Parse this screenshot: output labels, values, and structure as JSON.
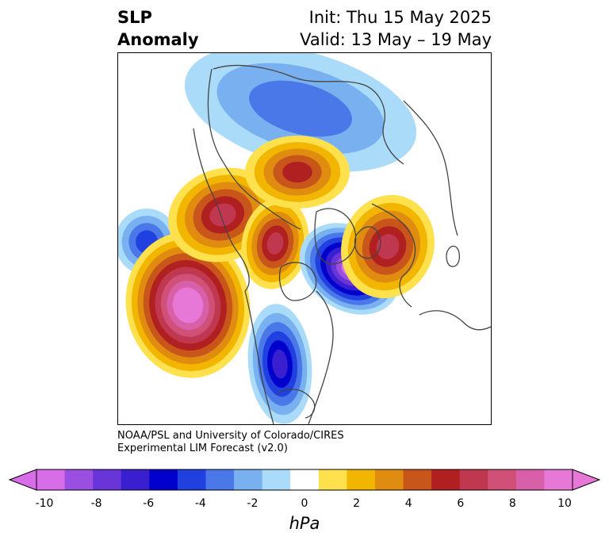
{
  "title": {
    "left_line1": "SLP",
    "left_line2": "Anomaly",
    "right_line1": "Init: Thu 15 May 2025",
    "right_line2": "Valid: 13 May – 19 May"
  },
  "credit": {
    "line1": "NOAA/PSL and University of Colorado/CIRES",
    "line2": "Experimental LIM Forecast (v2.0)"
  },
  "colorbar": {
    "unit": "hPa",
    "ticks": [
      "-10",
      "-8",
      "-6",
      "-4",
      "-2",
      "0",
      "2",
      "4",
      "6",
      "8",
      "10"
    ],
    "levels": [
      -10,
      -9,
      -8,
      -7,
      -6,
      -5,
      -4,
      -3,
      -2,
      -1,
      1,
      2,
      3,
      4,
      5,
      6,
      7,
      8,
      9,
      10
    ],
    "colors": [
      "#d86de8",
      "#9b4fe0",
      "#6a35d8",
      "#3a1fd0",
      "#0000cc",
      "#2040e0",
      "#4a78e8",
      "#78b0f0",
      "#aadcfa",
      "#ffffff",
      "#ffe14d",
      "#f2b600",
      "#e08c10",
      "#c8561a",
      "#b02020",
      "#c03850",
      "#d05078",
      "#d860a8",
      "#e878d8"
    ],
    "under_color": "#d86de8",
    "over_color": "#e878d8"
  },
  "map_anomalies": [
    {
      "name": "north-pacific-low",
      "sign": "negative",
      "peak_hpa": -4
    },
    {
      "name": "gulf-of-alaska-high",
      "sign": "positive",
      "peak_hpa": 10
    },
    {
      "name": "arctic-canada-low",
      "sign": "negative",
      "peak_hpa": -3
    },
    {
      "name": "siberia-high",
      "sign": "positive",
      "peak_hpa": 6
    },
    {
      "name": "alaska-high",
      "sign": "positive",
      "peak_hpa": 6
    },
    {
      "name": "east-siberia-high",
      "sign": "positive",
      "peak_hpa": 5
    },
    {
      "name": "greenland-low",
      "sign": "negative",
      "peak_hpa": -9
    },
    {
      "name": "scandinavia-high",
      "sign": "positive",
      "peak_hpa": 6
    },
    {
      "name": "central-us-low",
      "sign": "negative",
      "peak_hpa": -6
    }
  ]
}
